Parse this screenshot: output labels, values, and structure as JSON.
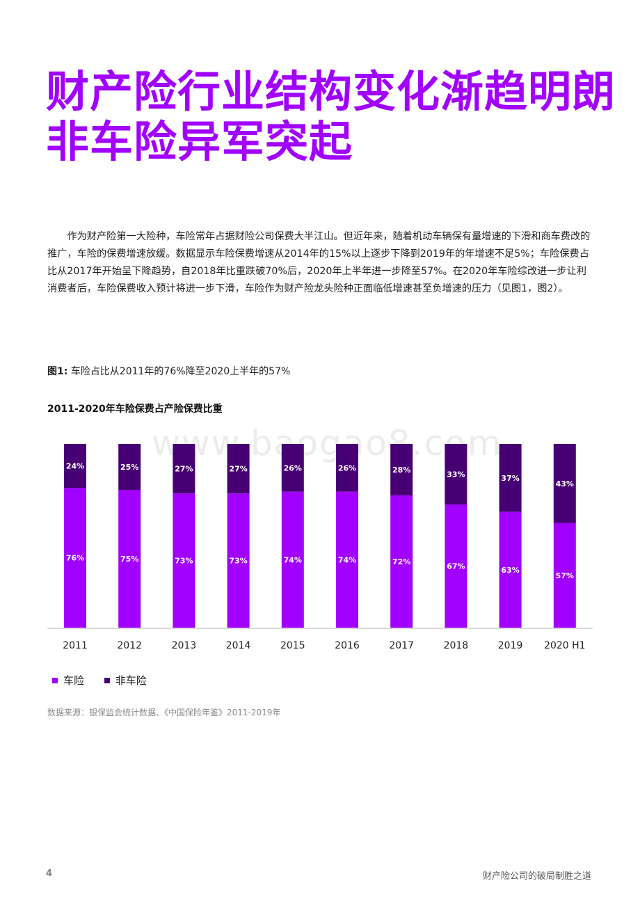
{
  "headline": {
    "line1": "财产险行业结构变化渐趋明朗",
    "line2": "非车险异军突起"
  },
  "body_text": "作为财产险第一大险种，车险常年占据财险公司保费大半江山。但近年来，随着机动车辆保有量增速的下滑和商车费改的推广，车险的保费增速放缓。数据显示车险保费增速从2014年的15%以上逐步下降到2019年的年增速不足5%；车险保费占比从2017年开始呈下降趋势，自2018年比重跌破70%后，2020年上半年进一步降至57%。在2020年车险综改进一步让利消费者后，车险保费收入预计将进一步下滑，车险作为财产险龙头险种正面临低增速甚至负增速的压力（见图1，图2）。",
  "figure": {
    "label": "图1:",
    "caption": "车险占比从2011年的76%降至2020上半年的57%"
  },
  "watermark": "www.baogao8.com",
  "chart_data": {
    "type": "bar",
    "stacked": true,
    "title": "2011-2020年车险保费占产险保费比重",
    "categories": [
      "2011",
      "2012",
      "2013",
      "2014",
      "2015",
      "2016",
      "2017",
      "2018",
      "2019",
      "2020 H1"
    ],
    "series": [
      {
        "name": "车险",
        "values": [
          76,
          75,
          73,
          73,
          74,
          74,
          72,
          67,
          63,
          57
        ],
        "color": "#a100ff"
      },
      {
        "name": "非车险",
        "values": [
          24,
          25,
          27,
          27,
          26,
          26,
          28,
          33,
          37,
          43
        ],
        "color": "#460073"
      }
    ],
    "ylim": [
      0,
      100
    ],
    "xlabel": "",
    "ylabel": "",
    "grid": false,
    "legend": "bottom-left"
  },
  "legend": [
    {
      "label": "车险",
      "color": "#a100ff"
    },
    {
      "label": "非车险",
      "color": "#460073"
    }
  ],
  "source": "数据来源：银保监会统计数据、《中国保险年鉴》2011-2019年",
  "footer": {
    "page_number": "4",
    "title": "财产险公司的破局制胜之道"
  }
}
